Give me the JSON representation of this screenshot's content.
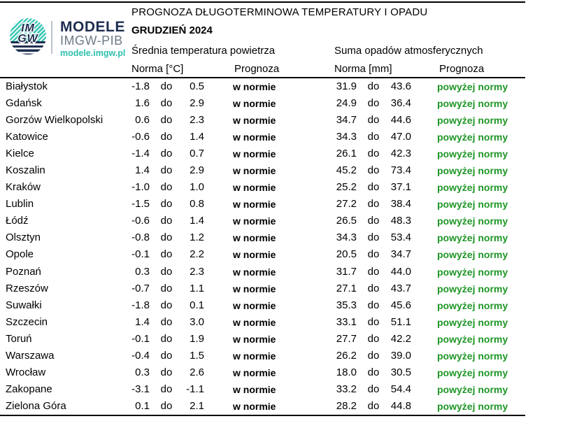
{
  "logo": {
    "letters_line1": "IM",
    "letters_line2": "GW",
    "brand": "MODELE",
    "org": "IMGW-PIB",
    "url": "modele.imgw.pl"
  },
  "header": {
    "title": "PROGNOZA DŁUGOTERMINOWA TEMPERATURY I OPADU",
    "month": "GRUDZIEŃ 2024",
    "temp_group": "Średnia temperatura powietrza",
    "precip_group": "Suma opadów atmosferycznych",
    "temp_norm_label": "Norma [°C]",
    "temp_forecast_label": "Prognoza",
    "precip_norm_label": "Norma [mm]",
    "precip_forecast_label": "Prognoza"
  },
  "colors": {
    "forecast_above_green": "#1e9626",
    "brand_navy": "#1e2d50",
    "brand_teal": "#2fc0ad",
    "org_gray": "#6d7a88"
  },
  "table": {
    "range_separator": "do",
    "rows": [
      {
        "city": "Białystok",
        "tmin": "-1.8",
        "tmax": "0.5",
        "tprog": "w normie",
        "pmin": "31.9",
        "pmax": "43.6",
        "pprog": "powyżej normy"
      },
      {
        "city": "Gdańsk",
        "tmin": "1.6",
        "tmax": "2.9",
        "tprog": "w normie",
        "pmin": "24.9",
        "pmax": "36.4",
        "pprog": "powyżej normy"
      },
      {
        "city": "Gorzów Wielkopolski",
        "tmin": "0.6",
        "tmax": "2.3",
        "tprog": "w normie",
        "pmin": "34.7",
        "pmax": "44.6",
        "pprog": "powyżej normy"
      },
      {
        "city": "Katowice",
        "tmin": "-0.6",
        "tmax": "1.4",
        "tprog": "w normie",
        "pmin": "34.3",
        "pmax": "47.0",
        "pprog": "powyżej normy"
      },
      {
        "city": "Kielce",
        "tmin": "-1.4",
        "tmax": "0.7",
        "tprog": "w normie",
        "pmin": "26.1",
        "pmax": "42.3",
        "pprog": "powyżej normy"
      },
      {
        "city": "Koszalin",
        "tmin": "1.4",
        "tmax": "2.9",
        "tprog": "w normie",
        "pmin": "45.2",
        "pmax": "73.4",
        "pprog": "powyżej normy"
      },
      {
        "city": "Kraków",
        "tmin": "-1.0",
        "tmax": "1.0",
        "tprog": "w normie",
        "pmin": "25.2",
        "pmax": "37.1",
        "pprog": "powyżej normy"
      },
      {
        "city": "Lublin",
        "tmin": "-1.5",
        "tmax": "0.8",
        "tprog": "w normie",
        "pmin": "27.2",
        "pmax": "38.4",
        "pprog": "powyżej normy"
      },
      {
        "city": "Łódź",
        "tmin": "-0.6",
        "tmax": "1.4",
        "tprog": "w normie",
        "pmin": "26.5",
        "pmax": "48.3",
        "pprog": "powyżej normy"
      },
      {
        "city": "Olsztyn",
        "tmin": "-0.8",
        "tmax": "1.2",
        "tprog": "w normie",
        "pmin": "34.3",
        "pmax": "53.4",
        "pprog": "powyżej normy"
      },
      {
        "city": "Opole",
        "tmin": "-0.1",
        "tmax": "2.2",
        "tprog": "w normie",
        "pmin": "20.5",
        "pmax": "34.7",
        "pprog": "powyżej normy"
      },
      {
        "city": "Poznań",
        "tmin": "0.3",
        "tmax": "2.3",
        "tprog": "w normie",
        "pmin": "31.7",
        "pmax": "44.0",
        "pprog": "powyżej normy"
      },
      {
        "city": "Rzeszów",
        "tmin": "-0.7",
        "tmax": "1.1",
        "tprog": "w normie",
        "pmin": "27.1",
        "pmax": "43.7",
        "pprog": "powyżej normy"
      },
      {
        "city": "Suwałki",
        "tmin": "-1.8",
        "tmax": "0.1",
        "tprog": "w normie",
        "pmin": "35.3",
        "pmax": "45.6",
        "pprog": "powyżej normy"
      },
      {
        "city": "Szczecin",
        "tmin": "1.4",
        "tmax": "3.0",
        "tprog": "w normie",
        "pmin": "33.1",
        "pmax": "51.1",
        "pprog": "powyżej normy"
      },
      {
        "city": "Toruń",
        "tmin": "-0.1",
        "tmax": "1.9",
        "tprog": "w normie",
        "pmin": "27.7",
        "pmax": "42.2",
        "pprog": "powyżej normy"
      },
      {
        "city": "Warszawa",
        "tmin": "-0.4",
        "tmax": "1.5",
        "tprog": "w normie",
        "pmin": "26.2",
        "pmax": "39.0",
        "pprog": "powyżej normy"
      },
      {
        "city": "Wrocław",
        "tmin": "0.3",
        "tmax": "2.6",
        "tprog": "w normie",
        "pmin": "18.0",
        "pmax": "30.5",
        "pprog": "powyżej normy"
      },
      {
        "city": "Zakopane",
        "tmin": "-3.1",
        "tmax": "-1.1",
        "tprog": "w normie",
        "pmin": "33.2",
        "pmax": "54.4",
        "pprog": "powyżej normy"
      },
      {
        "city": "Zielona Góra",
        "tmin": "0.1",
        "tmax": "2.1",
        "tprog": "w normie",
        "pmin": "28.2",
        "pmax": "44.8",
        "pprog": "powyżej normy"
      }
    ]
  }
}
